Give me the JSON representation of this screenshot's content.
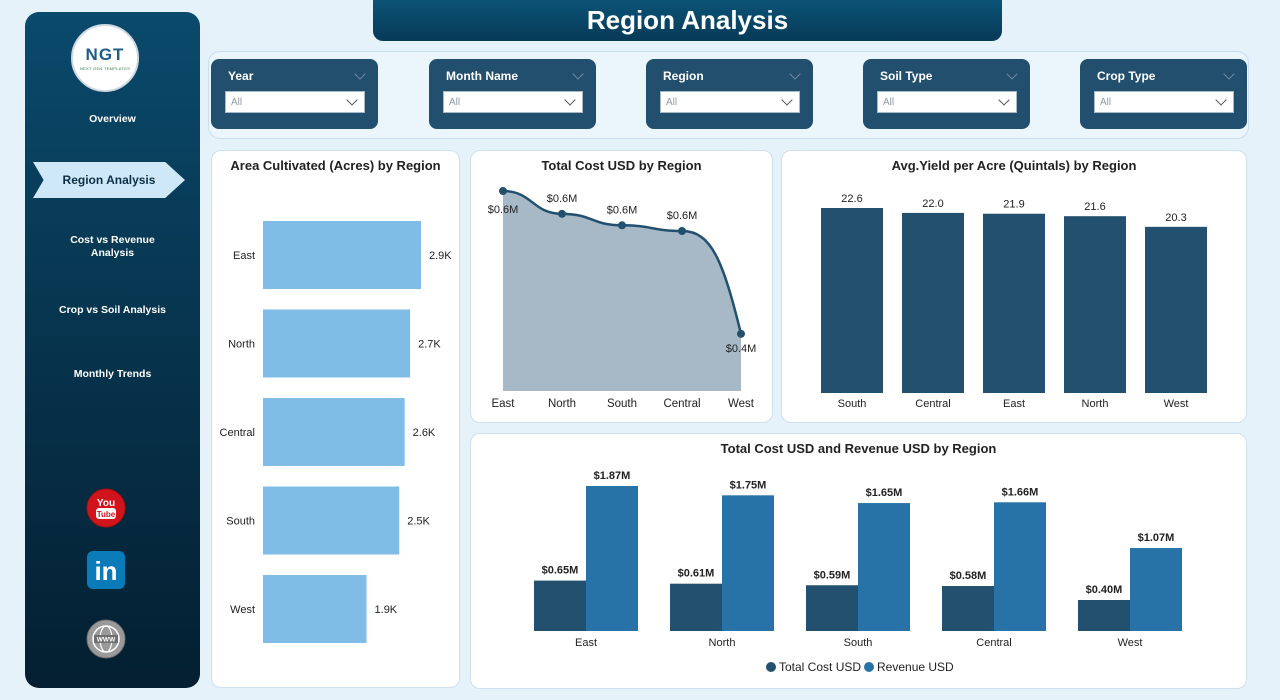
{
  "brand": {
    "logo_text": "NGT",
    "logo_sub": "NEXT GEN TEMPLATES"
  },
  "page_title": "Region Analysis",
  "sidebar": {
    "items": [
      {
        "label": "Overview"
      },
      {
        "label": "Region Analysis"
      },
      {
        "label": "Cost vs Revenue Analysis"
      },
      {
        "label": "Crop vs Soil Analysis"
      },
      {
        "label": "Monthly Trends"
      }
    ],
    "social": [
      {
        "icon": "youtube-icon",
        "label": "You Tube",
        "color": "#d0141b"
      },
      {
        "icon": "linkedin-icon",
        "label": "in",
        "color": "#0a7bb8"
      },
      {
        "icon": "globe-icon",
        "label": "WWW",
        "color": "#8c8c8c"
      }
    ]
  },
  "filters": [
    {
      "title": "Year",
      "value": "All"
    },
    {
      "title": "Month Name",
      "value": "All"
    },
    {
      "title": "Region",
      "value": "All"
    },
    {
      "title": "Soil Type",
      "value": "All"
    },
    {
      "title": "Crop Type",
      "value": "All"
    }
  ],
  "colors": {
    "dark_bar": "#23506f",
    "light_bar": "#7fbde7",
    "revenue_bar": "#2773a7",
    "area_fill": "#a7b9c6",
    "line": "#23506f"
  },
  "chart_data": [
    {
      "id": "area",
      "type": "bar",
      "orientation": "horizontal",
      "title": "Area Cultivated (Acres) by Region",
      "categories": [
        "East",
        "North",
        "Central",
        "South",
        "West"
      ],
      "values": [
        2900,
        2700,
        2600,
        2500,
        1900
      ],
      "labels": [
        "2.9K",
        "2.7K",
        "2.6K",
        "2.5K",
        "1.9K"
      ]
    },
    {
      "id": "cost",
      "type": "area",
      "title": "Total Cost USD by Region",
      "categories": [
        "East",
        "North",
        "South",
        "Central",
        "West"
      ],
      "values": [
        0.65,
        0.61,
        0.59,
        0.58,
        0.4
      ],
      "labels": [
        "$0.6M",
        "$0.6M",
        "$0.6M",
        "$0.6M",
        "$0.4M"
      ]
    },
    {
      "id": "yield",
      "type": "bar",
      "title": "Avg.Yield per Acre (Quintals) by Region",
      "categories": [
        "South",
        "Central",
        "East",
        "North",
        "West"
      ],
      "values": [
        22.6,
        22.0,
        21.9,
        21.6,
        20.3
      ],
      "labels": [
        "22.6",
        "22.0",
        "21.9",
        "21.6",
        "20.3"
      ]
    },
    {
      "id": "costrev",
      "type": "bar",
      "title": "Total Cost USD and Revenue USD by Region",
      "categories": [
        "East",
        "North",
        "South",
        "Central",
        "West"
      ],
      "series": [
        {
          "name": "Total Cost USD",
          "values": [
            0.65,
            0.61,
            0.59,
            0.58,
            0.4
          ],
          "labels": [
            "$0.65M",
            "$0.61M",
            "$0.59M",
            "$0.58M",
            "$0.40M"
          ]
        },
        {
          "name": "Revenue USD",
          "values": [
            1.87,
            1.75,
            1.65,
            1.66,
            1.07
          ],
          "labels": [
            "$1.87M",
            "$1.75M",
            "$1.65M",
            "$1.66M",
            "$1.07M"
          ]
        }
      ],
      "legend": "bottom-center"
    }
  ]
}
